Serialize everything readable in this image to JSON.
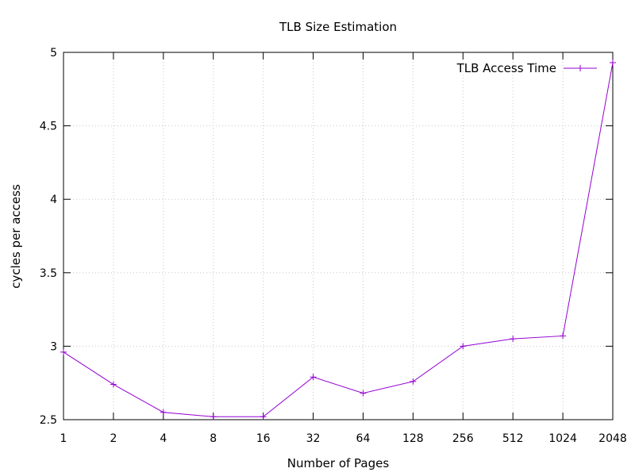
{
  "chart_data": {
    "type": "line",
    "title": "TLB Size Estimation",
    "xlabel": "Number of Pages",
    "ylabel": "cycles per access",
    "x_scale": "log2",
    "categories": [
      "1",
      "2",
      "4",
      "8",
      "16",
      "32",
      "64",
      "128",
      "256",
      "512",
      "1024",
      "2048"
    ],
    "x": [
      1,
      2,
      4,
      8,
      16,
      32,
      64,
      128,
      256,
      512,
      1024,
      2048
    ],
    "ylim": [
      2.5,
      5
    ],
    "yticks": [
      "2.5",
      "3",
      "3.5",
      "4",
      "4.5",
      "5"
    ],
    "grid": true,
    "legend_position": "top-right",
    "series": [
      {
        "name": "TLB Access Time",
        "color": "#9400d3",
        "marker": "plus",
        "values": [
          2.96,
          2.74,
          2.55,
          2.52,
          2.52,
          2.79,
          2.68,
          2.76,
          3.0,
          3.05,
          3.07,
          4.93
        ]
      }
    ]
  }
}
